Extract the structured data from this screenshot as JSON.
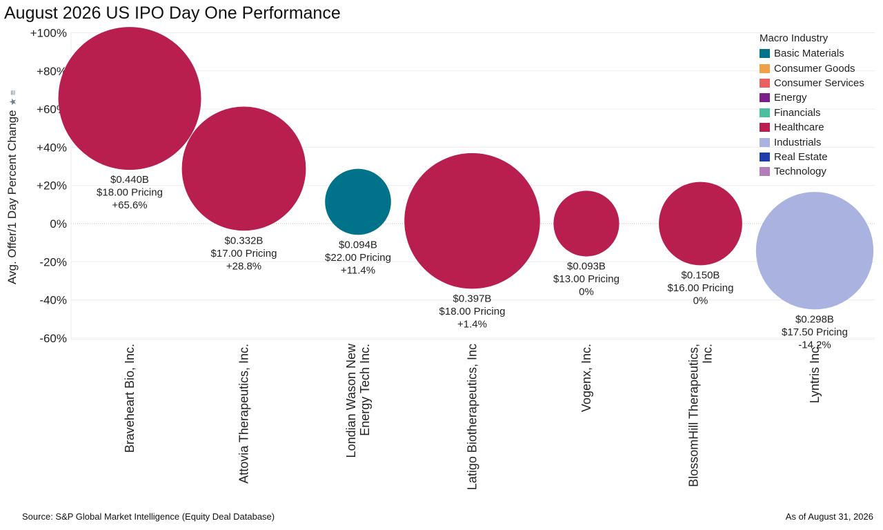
{
  "title": "August 2026 US IPO Day One Performance",
  "source": "Source: S&P Global Market Intelligence (Equity Deal Database)",
  "as_of": "As of August 31, 2026",
  "legend": {
    "title": "Macro Industry",
    "items": [
      {
        "label": "Basic Materials",
        "color": "#00728a"
      },
      {
        "label": "Consumer Goods",
        "color": "#f0a048"
      },
      {
        "label": "Consumer Services",
        "color": "#e86060"
      },
      {
        "label": "Energy",
        "color": "#7a1f8a"
      },
      {
        "label": "Financials",
        "color": "#4dbf9e"
      },
      {
        "label": "Healthcare",
        "color": "#b81e4e"
      },
      {
        "label": "Industrials",
        "color": "#aab3e0"
      },
      {
        "label": "Real Estate",
        "color": "#1f3cad"
      },
      {
        "label": "Technology",
        "color": "#b27db8"
      }
    ]
  },
  "chart_data": {
    "type": "scatter",
    "title": "August 2026 US IPO Day One Performance",
    "ylabel": "Avg. Offer/1 Day Percent Change",
    "ylim": [
      -65,
      105
    ],
    "y_ticks": [
      100,
      80,
      60,
      40,
      20,
      0,
      -20,
      -40,
      -60
    ],
    "y_tick_labels": [
      "+100%",
      "+80%",
      "+60%",
      "+40%",
      "+20%",
      "0%",
      "-20%",
      "-40%",
      "-60%"
    ],
    "grid": true,
    "legend_position": "top-right",
    "categories": [
      "Braveheart Bio, Inc.",
      "Attovia Therapeutics, Inc.",
      "Londian Wason New Energy Tech Inc.",
      "Latigo Biotherapeutics, Inc",
      "Vogenx, Inc.",
      "BlossomHill Therapeutics, Inc.",
      "Lyntris Inc."
    ],
    "category_label_lines": [
      [
        "Braveheart Bio, Inc."
      ],
      [
        "Attovia Therapeutics, Inc."
      ],
      [
        "Londian Wason New",
        "Energy Tech Inc."
      ],
      [
        "Latigo Biotherapeutics, Inc"
      ],
      [
        "Vogenx, Inc."
      ],
      [
        "BlossomHill Therapeutics,",
        "Inc."
      ],
      [
        "Lyntris Inc."
      ]
    ],
    "points": [
      {
        "deal_size_b": 0.44,
        "deal_label": "$0.440B",
        "pricing_label": "$18.00 Pricing",
        "change_pct": 65.6,
        "change_label": "+65.6%",
        "industry": "Healthcare"
      },
      {
        "deal_size_b": 0.332,
        "deal_label": "$0.332B",
        "pricing_label": "$17.00 Pricing",
        "change_pct": 28.8,
        "change_label": "+28.8%",
        "industry": "Healthcare"
      },
      {
        "deal_size_b": 0.094,
        "deal_label": "$0.094B",
        "pricing_label": "$22.00 Pricing",
        "change_pct": 11.4,
        "change_label": "+11.4%",
        "industry": "Basic Materials"
      },
      {
        "deal_size_b": 0.397,
        "deal_label": "$0.397B",
        "pricing_label": "$18.00 Pricing",
        "change_pct": 1.4,
        "change_label": "+1.4%",
        "industry": "Healthcare"
      },
      {
        "deal_size_b": 0.093,
        "deal_label": "$0.093B",
        "pricing_label": "$13.00 Pricing",
        "change_pct": 0,
        "change_label": "0%",
        "industry": "Healthcare"
      },
      {
        "deal_size_b": 0.15,
        "deal_label": "$0.150B",
        "pricing_label": "$16.00 Pricing",
        "change_pct": 0,
        "change_label": "0%",
        "industry": "Healthcare"
      },
      {
        "deal_size_b": 0.298,
        "deal_label": "$0.298B",
        "pricing_label": "$17.50 Pricing",
        "change_pct": -14.2,
        "change_label": "-14.2%",
        "industry": "Industrials"
      }
    ]
  }
}
